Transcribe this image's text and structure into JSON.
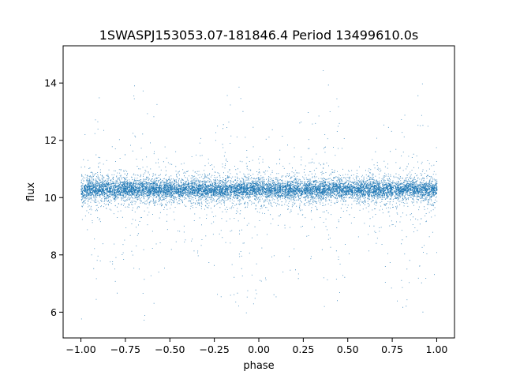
{
  "chart_data": {
    "type": "scatter",
    "title": "1SWASPJ153053.07-181846.4 Period 13499610.0s",
    "xlabel": "phase",
    "ylabel": "flux",
    "xlim": [
      -1.1,
      1.1
    ],
    "ylim": [
      5.1,
      15.3
    ],
    "x_ticks": [
      -1.0,
      -0.75,
      -0.5,
      -0.25,
      0.0,
      0.25,
      0.5,
      0.75,
      1.0
    ],
    "x_tick_labels": [
      "−1.00",
      "−0.75",
      "−0.50",
      "−0.25",
      "0.00",
      "0.25",
      "0.50",
      "0.75",
      "1.00"
    ],
    "y_ticks": [
      6,
      8,
      10,
      12,
      14
    ],
    "y_tick_labels": [
      "6",
      "8",
      "10",
      "12",
      "14"
    ],
    "grid": false,
    "legend": "none",
    "marker_color": "#1f77b4",
    "series": [
      {
        "x_range": [
          -1.0,
          1.0
        ],
        "median_flux": 10.3,
        "flux_envelope_by_phase": [
          {
            "phase": -1.0,
            "min": 5.7,
            "max": 12.8
          },
          {
            "phase": -0.95,
            "min": 7.0,
            "max": 12.4
          },
          {
            "phase": -0.9,
            "min": 6.0,
            "max": 14.4
          },
          {
            "phase": -0.85,
            "min": 8.2,
            "max": 11.6
          },
          {
            "phase": -0.8,
            "min": 5.8,
            "max": 13.0
          },
          {
            "phase": -0.75,
            "min": 8.5,
            "max": 11.5
          },
          {
            "phase": -0.7,
            "min": 6.4,
            "max": 14.0
          },
          {
            "phase": -0.65,
            "min": 5.6,
            "max": 14.9
          },
          {
            "phase": -0.6,
            "min": 5.8,
            "max": 14.8
          },
          {
            "phase": -0.55,
            "min": 7.2,
            "max": 12.4
          },
          {
            "phase": -0.5,
            "min": 7.8,
            "max": 11.6
          },
          {
            "phase": -0.45,
            "min": 8.8,
            "max": 11.8
          },
          {
            "phase": -0.4,
            "min": 8.2,
            "max": 11.2
          },
          {
            "phase": -0.35,
            "min": 8.0,
            "max": 11.8
          },
          {
            "phase": -0.3,
            "min": 7.4,
            "max": 12.6
          },
          {
            "phase": -0.25,
            "min": 6.8,
            "max": 12.6
          },
          {
            "phase": -0.2,
            "min": 5.7,
            "max": 14.5
          },
          {
            "phase": -0.15,
            "min": 6.4,
            "max": 13.6
          },
          {
            "phase": -0.1,
            "min": 5.7,
            "max": 14.0
          },
          {
            "phase": -0.05,
            "min": 6.0,
            "max": 12.8
          },
          {
            "phase": 0.0,
            "min": 6.2,
            "max": 11.8
          },
          {
            "phase": 0.05,
            "min": 7.0,
            "max": 12.8
          },
          {
            "phase": 0.1,
            "min": 6.4,
            "max": 13.0
          },
          {
            "phase": 0.15,
            "min": 7.6,
            "max": 12.0
          },
          {
            "phase": 0.2,
            "min": 6.0,
            "max": 12.8
          },
          {
            "phase": 0.25,
            "min": 7.0,
            "max": 12.8
          },
          {
            "phase": 0.3,
            "min": 6.6,
            "max": 13.4
          },
          {
            "phase": 0.35,
            "min": 5.6,
            "max": 14.9
          },
          {
            "phase": 0.4,
            "min": 5.7,
            "max": 14.8
          },
          {
            "phase": 0.45,
            "min": 6.2,
            "max": 13.2
          },
          {
            "phase": 0.5,
            "min": 7.6,
            "max": 12.0
          },
          {
            "phase": 0.55,
            "min": 8.6,
            "max": 11.8
          },
          {
            "phase": 0.6,
            "min": 8.2,
            "max": 11.2
          },
          {
            "phase": 0.65,
            "min": 7.6,
            "max": 12.0
          },
          {
            "phase": 0.7,
            "min": 7.0,
            "max": 12.6
          },
          {
            "phase": 0.75,
            "min": 6.8,
            "max": 13.6
          },
          {
            "phase": 0.8,
            "min": 5.7,
            "max": 14.5
          },
          {
            "phase": 0.85,
            "min": 6.2,
            "max": 13.6
          },
          {
            "phase": 0.9,
            "min": 5.7,
            "max": 14.6
          },
          {
            "phase": 0.95,
            "min": 6.2,
            "max": 13.0
          },
          {
            "phase": 1.0,
            "min": 7.6,
            "max": 12.0
          }
        ]
      }
    ]
  }
}
